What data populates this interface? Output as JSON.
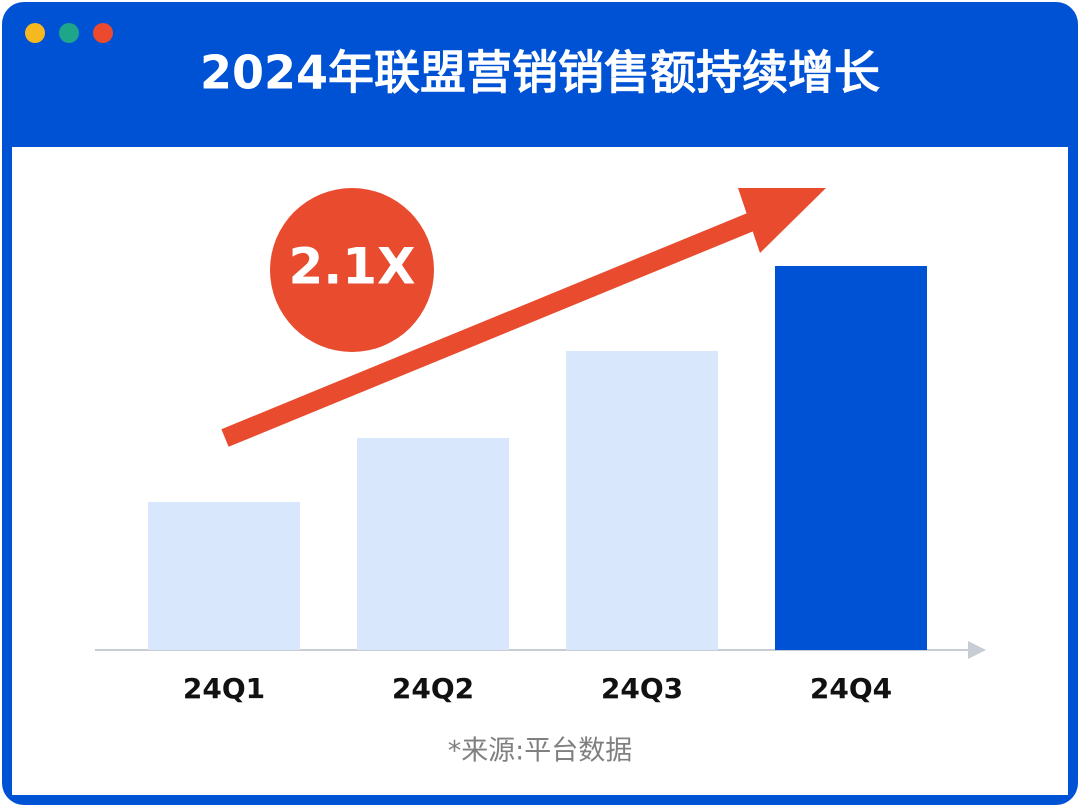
{
  "chart_data": {
    "type": "bar",
    "title": "2024年联盟营销销售额持续增长",
    "annotation": "2.1X",
    "note": "*来源:平台数据",
    "categories": [
      "24Q1",
      "24Q2",
      "24Q3",
      "24Q4"
    ],
    "values": [
      148,
      212,
      299,
      384
    ],
    "colors": [
      "#d9e7fc",
      "#d9e7fc",
      "#d9e7fc",
      "#0052d4"
    ]
  }
}
